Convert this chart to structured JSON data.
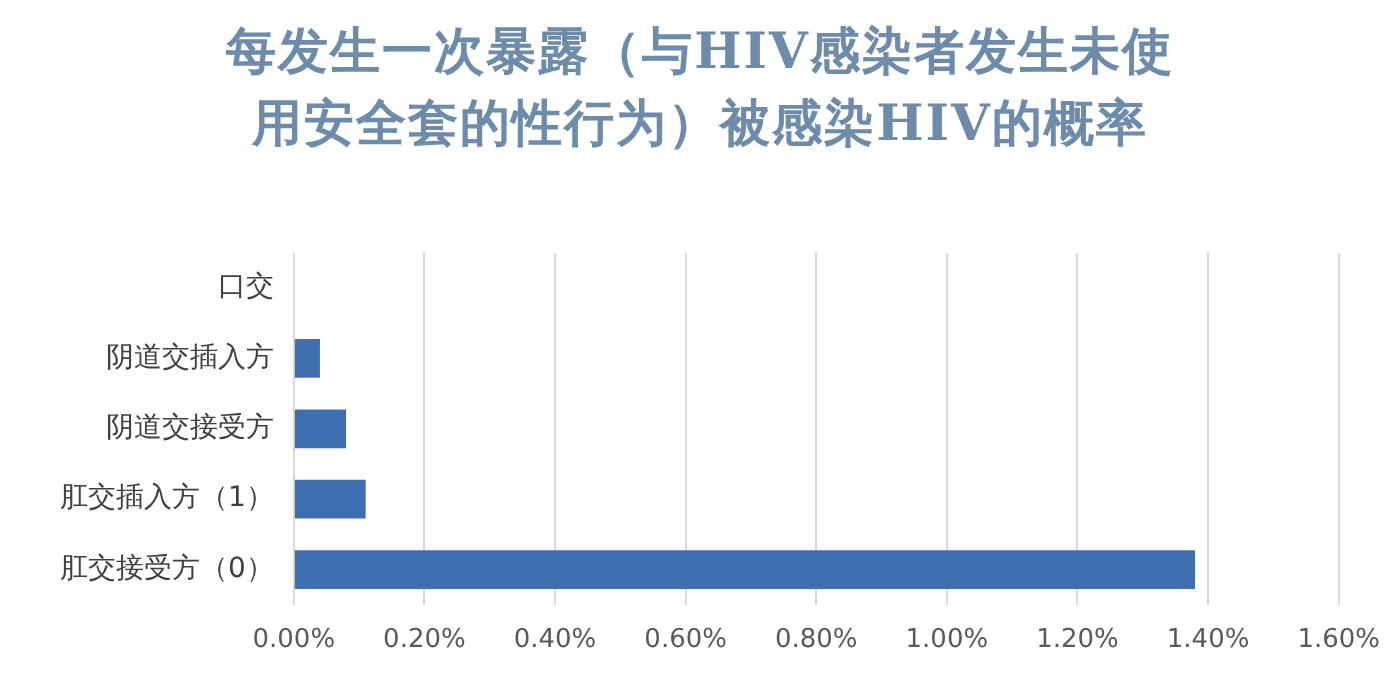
{
  "chart_data": {
    "type": "bar",
    "orientation": "horizontal",
    "title": "每发生一次暴露（与HIV感染者发生未使用安全套的性行为）被感染HIV的概率",
    "categories": [
      "口交",
      "阴道交插入方",
      "阴道交接受方",
      "肛交插入方（1）",
      "肛交接受方（0）"
    ],
    "values": [
      0,
      0.04,
      0.08,
      0.11,
      1.38
    ],
    "color": "#3f6fb0",
    "xlim": [
      0,
      1.6
    ],
    "xticks": [
      {
        "value": 0,
        "label": "0.00%"
      },
      {
        "value": 0.2,
        "label": "0.20%"
      },
      {
        "value": 0.4,
        "label": "0.40%"
      },
      {
        "value": 0.6,
        "label": "0.60%"
      },
      {
        "value": 0.8,
        "label": "0.80%"
      },
      {
        "value": 1,
        "label": "1.00%"
      },
      {
        "value": 1.2,
        "label": "1.20%"
      },
      {
        "value": 1.4,
        "label": "1.40%"
      },
      {
        "value": 1.6,
        "label": "1.60%"
      }
    ],
    "grid": "x",
    "legend": false
  }
}
